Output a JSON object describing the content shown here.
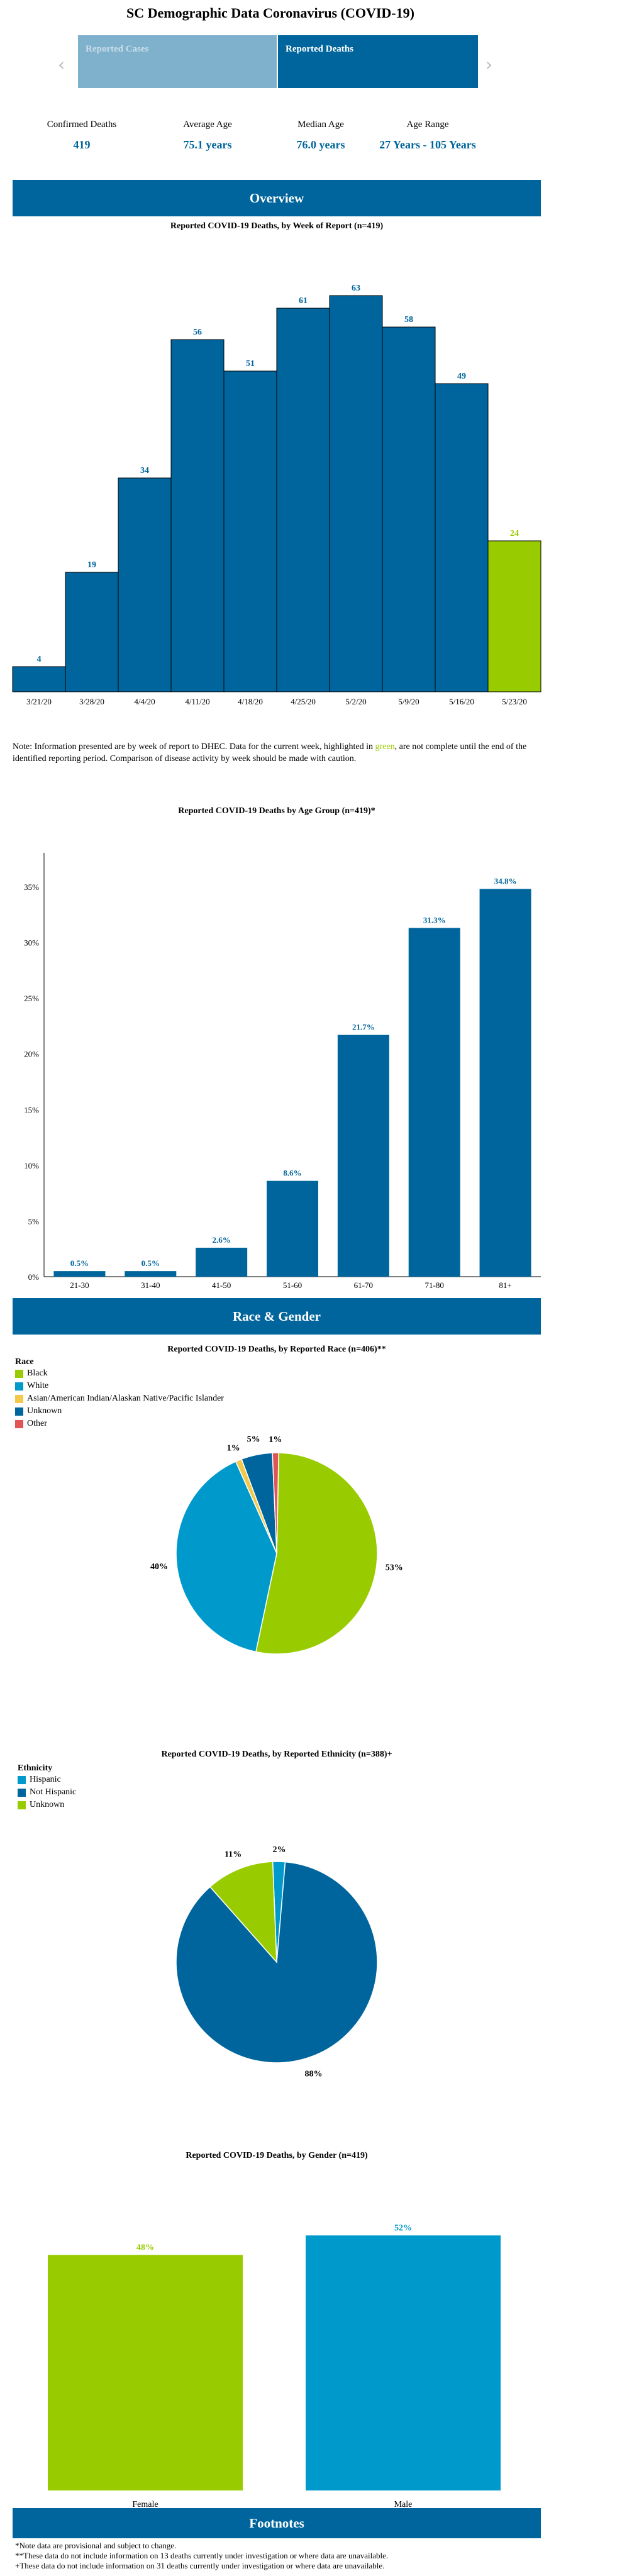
{
  "page": {
    "title": "SC Demographic Data Coronavirus (COVID-19)"
  },
  "carousel": {
    "tabs": [
      {
        "label": "Reported Cases"
      },
      {
        "label": "Reported Deaths"
      }
    ]
  },
  "stats": [
    {
      "label": "Confirmed Deaths",
      "value": "419"
    },
    {
      "label": "Average Age",
      "value": "75.1 years"
    },
    {
      "label": "Median Age",
      "value": "76.0 years"
    },
    {
      "label": "Age Range",
      "value": "27 Years - 105 Years"
    }
  ],
  "sections": {
    "overview": "Overview",
    "race_gender": "Race & Gender",
    "footnotes": "Footnotes"
  },
  "colors": {
    "primary": "#00659c",
    "green": "#99cc00",
    "light_blue": "#0099cc",
    "yellow": "#f2c94c",
    "red": "#e05555"
  },
  "note": {
    "before": "Note: Information presented are by week of report to DHEC. Data for the current week, highlighted in ",
    "highlight": "green",
    "after": ", are not complete until the end of the identified reporting period. Comparison of disease activity by week should be made with caution."
  },
  "chart_data": [
    {
      "type": "bar",
      "title": "Reported COVID-19 Deaths, by Week of Report (n=419)",
      "categories": [
        "3/21/20",
        "3/28/20",
        "4/4/20",
        "4/11/20",
        "4/18/20",
        "4/25/20",
        "5/2/20",
        "5/9/20",
        "5/16/20",
        "5/23/20"
      ],
      "values": [
        4,
        19,
        34,
        56,
        51,
        61,
        63,
        58,
        49,
        24
      ],
      "highlight_last": true,
      "ylim": [
        0,
        70
      ],
      "grid": false
    },
    {
      "type": "bar",
      "title": "Reported COVID-19 Deaths by Age Group (n=419)*",
      "categories": [
        "21-30",
        "31-40",
        "41-50",
        "51-60",
        "61-70",
        "71-80",
        "81+"
      ],
      "values": [
        0.5,
        0.5,
        2.6,
        8.6,
        21.7,
        31.3,
        34.8
      ],
      "labels": [
        "0.5%",
        "0.5%",
        "2.6%",
        "8.6%",
        "21.7%",
        "31.3%",
        "34.8%"
      ],
      "yticks": [
        "0%",
        "5%",
        "10%",
        "15%",
        "20%",
        "25%",
        "30%",
        "35%"
      ],
      "ylim": [
        0,
        35
      ],
      "grid": false
    },
    {
      "type": "pie",
      "title": "Reported COVID-19 Deaths, by Reported Race (n=406)**",
      "legend_title": "Race",
      "slices": [
        {
          "name": "Black",
          "value": 53,
          "label": "53%",
          "color": "#99cc00"
        },
        {
          "name": "White",
          "value": 40,
          "label": "40%",
          "color": "#0099cc"
        },
        {
          "name": "Asian/American Indian/Alaskan Native/Pacific Islander",
          "value": 1,
          "label": "1%",
          "color": "#f2c94c"
        },
        {
          "name": "Unknown",
          "value": 5,
          "label": "5%",
          "color": "#00659c"
        },
        {
          "name": "Other",
          "value": 1,
          "label": "1%",
          "color": "#e05555"
        }
      ]
    },
    {
      "type": "pie",
      "title": "Reported COVID-19 Deaths, by Reported Ethnicity (n=388)+",
      "legend_title": "Ethnicity",
      "slices": [
        {
          "name": "Hispanic",
          "value": 2,
          "label": "2%",
          "color": "#0099cc"
        },
        {
          "name": "Not Hispanic",
          "value": 88,
          "label": "88%",
          "color": "#00659c"
        },
        {
          "name": "Unknown",
          "value": 11,
          "label": "11%",
          "color": "#99cc00"
        }
      ]
    },
    {
      "type": "bar",
      "title": "Reported COVID-19 Deaths, by Gender (n=419)",
      "categories": [
        "Female",
        "Male"
      ],
      "values": [
        48,
        52
      ],
      "labels": [
        "48%",
        "52%"
      ],
      "colors": [
        "#99cc00",
        "#0099cc"
      ],
      "ylim": [
        0,
        60
      ]
    }
  ],
  "footnotes": [
    "*Note data are provisional and subject to change.",
    "**These data do not include information on 13 deaths currently under investigation or where data are unavailable.",
    "+These data do not include information on 31 deaths currently under investigation or where data are unavailable."
  ]
}
